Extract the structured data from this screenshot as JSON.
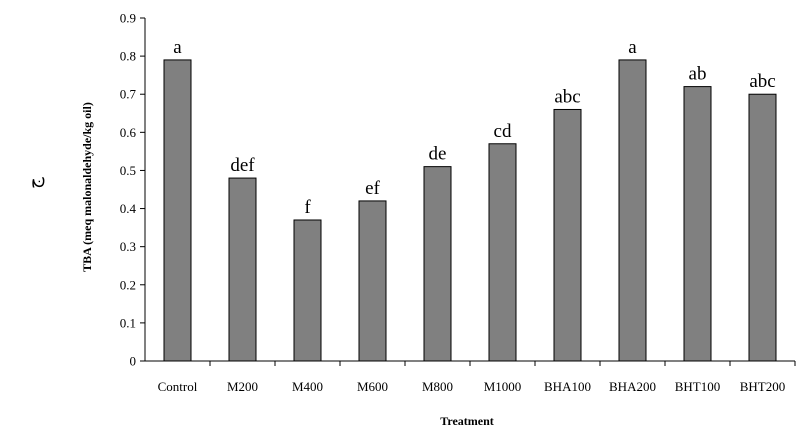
{
  "chart_data": {
    "type": "bar",
    "categories": [
      "Control",
      "M200",
      "M400",
      "M600",
      "M800",
      "M1000",
      "BHA100",
      "BHA200",
      "BHT100",
      "BHT200"
    ],
    "values": [
      0.79,
      0.48,
      0.37,
      0.42,
      0.51,
      0.57,
      0.66,
      0.79,
      0.72,
      0.7
    ],
    "bar_labels": [
      "a",
      "def",
      "f",
      "ef",
      "de",
      "cd",
      "abc",
      "a",
      "ab",
      "abc"
    ],
    "title": "",
    "xlabel": "Treatment",
    "ylabel": "TBA (meq malonaldehyde/kg oil)",
    "ylim": [
      0,
      0.9
    ],
    "yticks": [
      "0",
      "0.1",
      "0.2",
      "0.3",
      "0.4",
      "0.5",
      "0.6",
      "0.7",
      "0.8",
      "0.9"
    ],
    "grid": false,
    "legend": "none",
    "colors": {
      "bar": "#808080",
      "bar_stroke": "#000000",
      "axis": "#000000"
    }
  },
  "side_mark": "ج"
}
